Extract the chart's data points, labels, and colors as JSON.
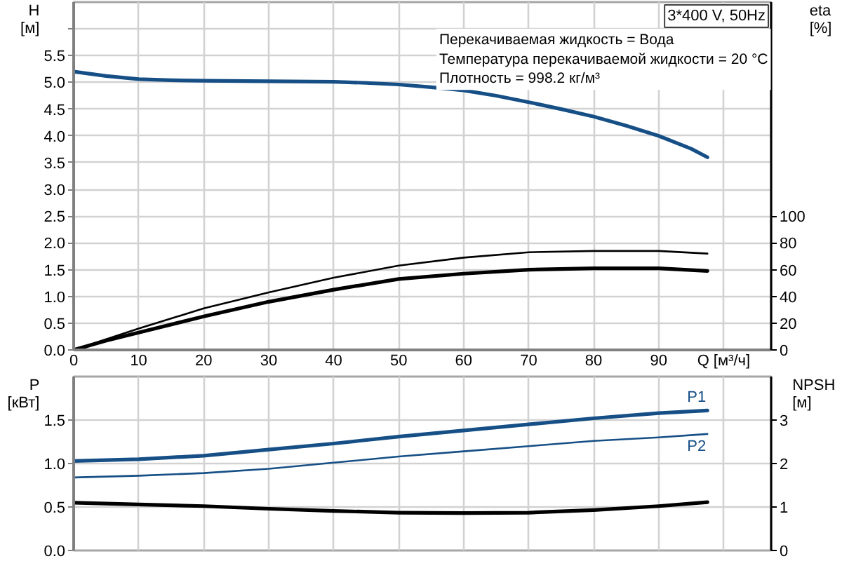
{
  "chart_data": [
    {
      "type": "line",
      "title": "3*400 V, 50Hz",
      "ylabel": "H [м]",
      "y2label": "eta [%]",
      "annotations": [
        "Перекачиваемая жидкость = Вода",
        "Температура перекачиваемой жидкости = 20 °C",
        "Плотность = 998.2 кг/м³"
      ],
      "xlim": [
        0,
        107.3
      ],
      "xticks": [
        0,
        10,
        20,
        30,
        40,
        50,
        60,
        70,
        80,
        90,
        {
          "value": 100,
          "label": "Q [м³/ч]"
        }
      ],
      "ylim": [
        0,
        6.5
      ],
      "yticks": [
        {
          "value": 0,
          "label": "0.0"
        },
        0.5,
        {
          "value": 1,
          "label": "1.0"
        },
        1.5,
        {
          "value": 2,
          "label": "2.0"
        },
        2.5,
        {
          "value": 3,
          "label": "3.0"
        },
        3.5,
        {
          "value": 4,
          "label": "4.0"
        },
        4.5,
        {
          "value": 5,
          "label": "5.0"
        },
        5.5,
        {
          "value": 6,
          "label": null
        }
      ],
      "y2lim": [
        0,
        260
      ],
      "y2ticks": [
        0,
        20,
        40,
        60,
        80,
        100
      ],
      "grid": true,
      "series": [
        {
          "color": "#164f86",
          "x": [
            0,
            5,
            10,
            15,
            20,
            30,
            40,
            45,
            50,
            55,
            60,
            65,
            70,
            75,
            80,
            85,
            90,
            95,
            97.5
          ],
          "values": [
            5.2,
            5.12,
            5.06,
            5.04,
            5.03,
            5.02,
            5.01,
            4.99,
            4.96,
            4.91,
            4.85,
            4.75,
            4.63,
            4.5,
            4.36,
            4.19,
            4.0,
            3.76,
            3.6
          ]
        },
        {
          "color": "#000000",
          "axis": "y2",
          "x": [
            0,
            5,
            10,
            20,
            30,
            40,
            50,
            60,
            70,
            80,
            90,
            97.5
          ],
          "values": [
            0,
            8,
            16,
            31,
            43,
            54,
            63,
            69,
            73,
            74,
            74,
            72
          ]
        },
        {
          "color": "#000000",
          "axis": "y2",
          "x": [
            0,
            5,
            10,
            20,
            30,
            40,
            50,
            60,
            70,
            80,
            90,
            97.5
          ],
          "values": [
            0,
            7,
            13,
            25,
            36,
            45,
            53,
            57,
            60,
            61,
            61,
            59
          ]
        }
      ]
    },
    {
      "type": "line",
      "ylabel": "P [кВт]",
      "y2label": "NPSH [м]",
      "xlim": [
        0,
        107.3
      ],
      "xticks": [
        0,
        10,
        20,
        30,
        40,
        50,
        60,
        70,
        80,
        90,
        100
      ],
      "ylim": [
        0,
        2
      ],
      "yticks": [
        {
          "value": 0,
          "label": "0.0"
        },
        0.5,
        {
          "value": 1,
          "label": "1.0"
        },
        1.5
      ],
      "y2lim": [
        0,
        4
      ],
      "y2ticks": [
        0,
        1,
        2,
        3
      ],
      "tick_labels": "y",
      "grid": true,
      "series": [
        {
          "name": "P1",
          "color": "#164f86",
          "x": [
            0,
            10,
            20,
            30,
            40,
            50,
            60,
            70,
            80,
            90,
            97.5
          ],
          "values": [
            1.03,
            1.05,
            1.09,
            1.16,
            1.23,
            1.31,
            1.38,
            1.45,
            1.52,
            1.58,
            1.61
          ]
        },
        {
          "name": "P2",
          "color": "#164f86",
          "x": [
            0,
            10,
            20,
            30,
            40,
            50,
            60,
            70,
            80,
            90,
            97.5
          ],
          "values": [
            0.84,
            0.86,
            0.89,
            0.94,
            1.01,
            1.08,
            1.14,
            1.2,
            1.26,
            1.3,
            1.34
          ]
        },
        {
          "color": "#000000",
          "axis": "y2",
          "x": [
            0,
            10,
            20,
            30,
            40,
            50,
            60,
            70,
            80,
            90,
            97.5
          ],
          "values": [
            1.1,
            1.06,
            1.02,
            0.96,
            0.91,
            0.87,
            0.86,
            0.87,
            0.93,
            1.02,
            1.11
          ]
        }
      ]
    }
  ]
}
